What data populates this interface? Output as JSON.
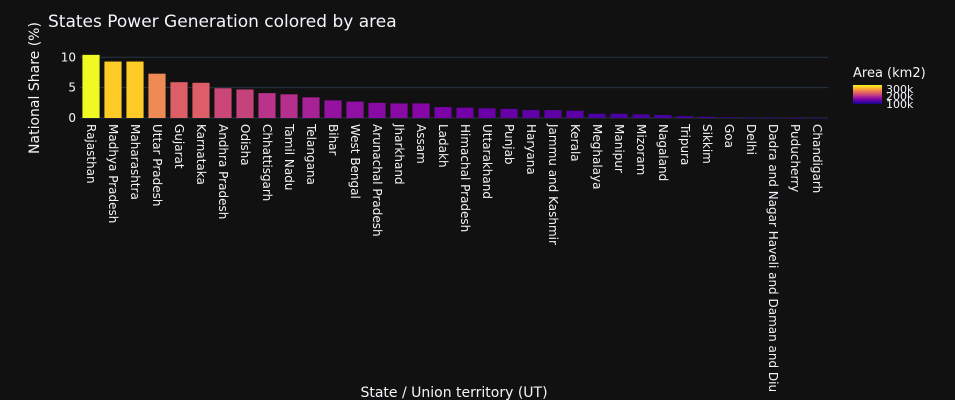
{
  "chart_data": {
    "type": "bar",
    "title": "States Power Generation colored by area",
    "xlabel": "State / Union territory (UT)",
    "ylabel": "National Share (%)",
    "ylim": [
      0,
      11.2
    ],
    "yticks": [
      0,
      5,
      10
    ],
    "grid": true,
    "colorbar": {
      "title": "Area (km2)",
      "ticks": [
        "300k",
        "200k",
        "100k"
      ],
      "colors": [
        "#f0f921",
        "#fdca26",
        "#fb9f3a",
        "#ed7953",
        "#d8576b",
        "#bd3786",
        "#9c179e",
        "#7201a8",
        "#46039f",
        "#0d0887"
      ]
    },
    "categories": [
      "Rajasthan",
      "Madhya Pradesh",
      "Maharashtra",
      "Uttar Pradesh",
      "Gujarat",
      "Karnataka",
      "Andhra Pradesh",
      "Odisha",
      "Chhattisgarh",
      "Tamil Nadu",
      "Telangana",
      "Bihar",
      "West Bengal",
      "Arunachal Pradesh",
      "Jharkhand",
      "Assam",
      "Ladakh",
      "Himachal Pradesh",
      "Uttarakhand",
      "Punjab",
      "Haryana",
      "Jammu and Kashmir",
      "Kerala",
      "Meghalaya",
      "Manipur",
      "Mizoram",
      "Nagaland",
      "Tripura",
      "Sikkim",
      "Goa",
      "Delhi",
      "Dadra and Nagar Haveli and Daman and Diu",
      "Puducherry",
      "Chandigarh"
    ],
    "values": [
      10.4,
      9.3,
      9.3,
      7.3,
      5.9,
      5.8,
      4.9,
      4.7,
      4.1,
      3.9,
      3.4,
      2.9,
      2.7,
      2.5,
      2.4,
      2.4,
      1.8,
      1.7,
      1.6,
      1.5,
      1.3,
      1.3,
      1.2,
      0.7,
      0.7,
      0.6,
      0.5,
      0.3,
      0.2,
      0.1,
      0.05,
      0.05,
      0.02,
      0.01
    ],
    "colors": [
      "#f0f921",
      "#fdca26",
      "#fdca26",
      "#ef8a54",
      "#dd5e66",
      "#dd5e66",
      "#ca4778",
      "#c6427b",
      "#b9338a",
      "#b52f8c",
      "#a62296",
      "#9512a1",
      "#9010a3",
      "#8a0aa5",
      "#8a0aa5",
      "#8707a6",
      "#7a02a8",
      "#7401a8",
      "#6a00a8",
      "#6800a8",
      "#6100a7",
      "#5e01a6",
      "#5c01a6",
      "#4c02a1",
      "#4a02a0",
      "#4a02a0",
      "#48039f",
      "#46039f",
      "#44039e",
      "#44039e",
      "#44039e",
      "#44039e",
      "#44039e",
      "#44039e"
    ]
  }
}
